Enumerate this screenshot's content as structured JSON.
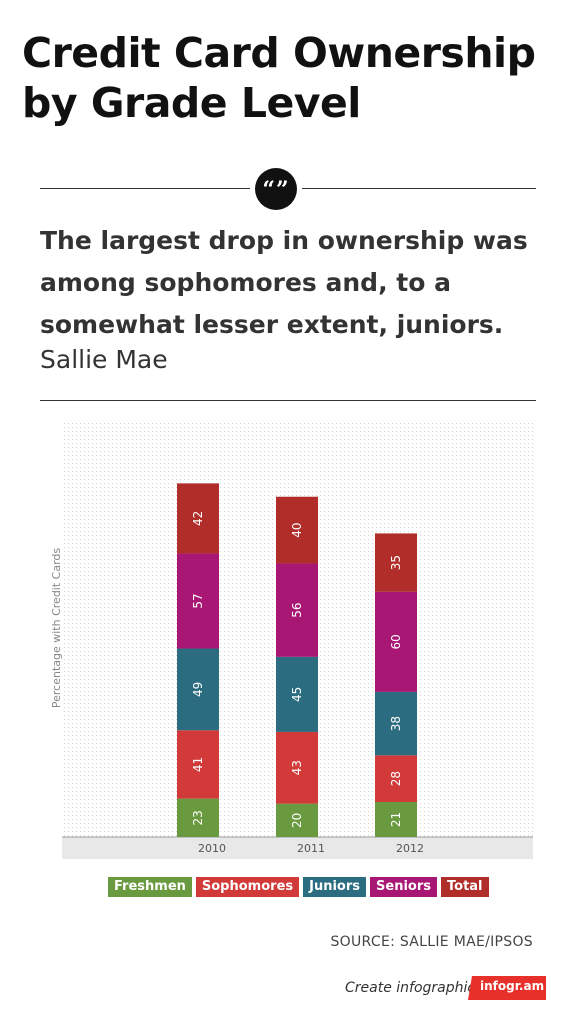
{
  "title": "Credit Card Ownership by Grade Level",
  "quote": {
    "icon": "quote-icon",
    "mark": "“”",
    "text": "The largest drop in ownership was among sophomores and, to a somewhat lesser extent, juniors.",
    "source": "Sallie Mae"
  },
  "chart_data": {
    "type": "bar",
    "stacked": true,
    "categories": [
      "2010",
      "2011",
      "2012"
    ],
    "series": [
      {
        "name": "Freshmen",
        "color": "#6a9a3f",
        "values": [
          23,
          20,
          21
        ]
      },
      {
        "name": "Sophomores",
        "color": "#d23a3a",
        "values": [
          41,
          43,
          28
        ]
      },
      {
        "name": "Juniors",
        "color": "#2c6c80",
        "values": [
          49,
          45,
          38
        ]
      },
      {
        "name": "Seniors",
        "color": "#a81774",
        "values": [
          57,
          56,
          60
        ]
      },
      {
        "name": "Total",
        "color": "#b12d2a",
        "values": [
          42,
          40,
          35
        ]
      }
    ],
    "title": "",
    "xlabel": "",
    "ylabel": "Percentage with Credit Cards",
    "ylim": [
      0,
      250
    ],
    "grid": true,
    "legend_position": "bottom"
  },
  "source": "SOURCE: SALLIE MAE/IPSOS",
  "footer": {
    "text": "Create infographics",
    "badge": "infogr.am",
    "badge_color": "#e8302a"
  }
}
